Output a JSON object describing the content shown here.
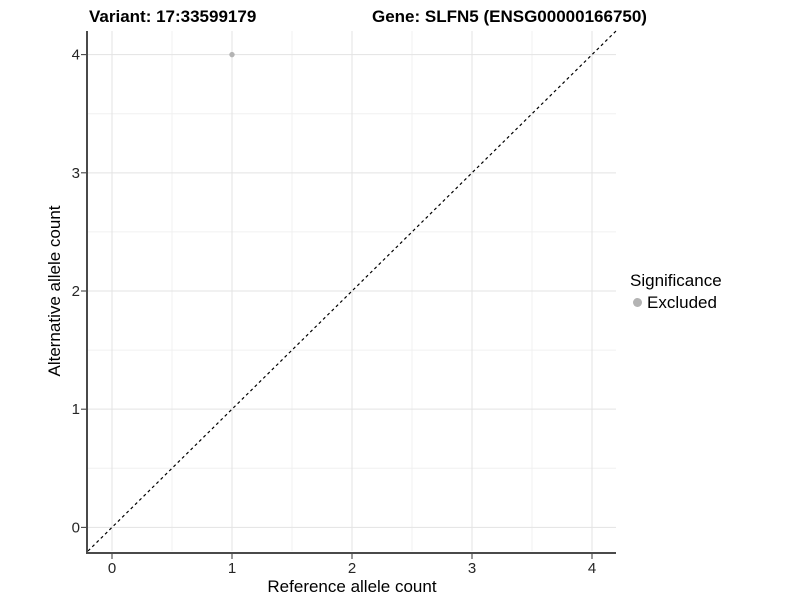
{
  "chart_data": {
    "type": "scatter",
    "titles": {
      "left": "Variant: 17:33599179",
      "right": "Gene: SLFN5 (ENSG00000166750)"
    },
    "xlabel": "Reference allele count",
    "ylabel": "Alternative allele count",
    "xlim": [
      -0.2,
      4.2
    ],
    "ylim": [
      -0.2,
      4.2
    ],
    "xticks": [
      0,
      1,
      2,
      3,
      4
    ],
    "yticks": [
      0,
      1,
      2,
      3,
      4
    ],
    "xminor": [
      0.5,
      1.5,
      2.5,
      3.5
    ],
    "yminor": [
      0.5,
      1.5,
      2.5,
      3.5
    ],
    "grid": {
      "major_color": "#e3e3e3",
      "minor_color": "#f0f0f0"
    },
    "axis_color": "#4a4a4a",
    "tick_color": "#333333",
    "tick_label_color": "#262626",
    "identity_line": {
      "style": "dashed",
      "color": "#000000"
    },
    "points": [
      {
        "x": 1,
        "y": 4,
        "significance": "Excluded"
      }
    ],
    "point_color": "#b3b3b3",
    "point_radius": 2.7,
    "legend": {
      "title": "Significance",
      "position": "right",
      "entries": [
        {
          "label": "Excluded",
          "color": "#b3b3b3"
        }
      ]
    }
  }
}
